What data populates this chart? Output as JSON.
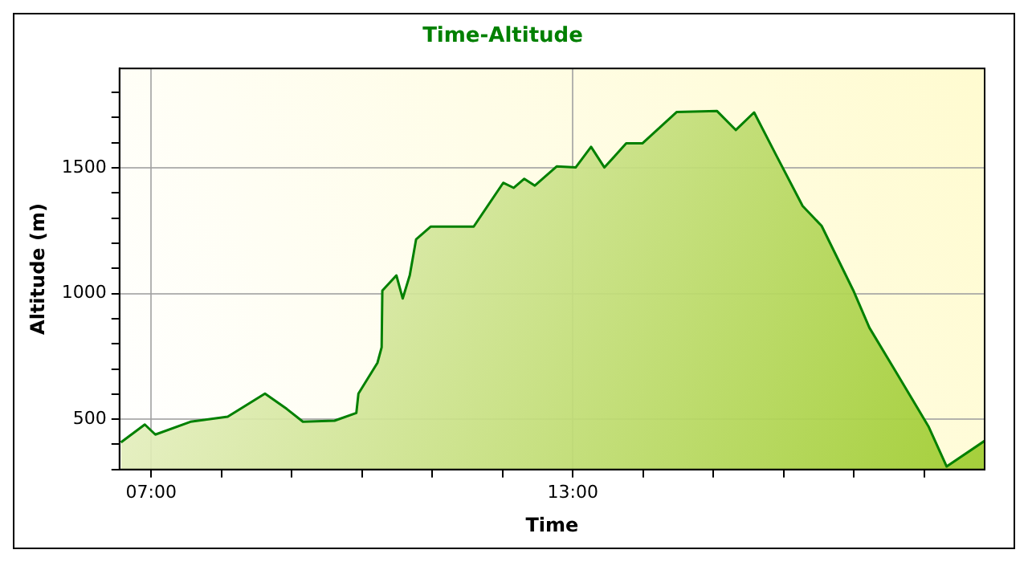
{
  "chart_data": {
    "type": "area",
    "title": "Time-Altitude",
    "xlabel": "Time",
    "ylabel": "Altitude (m)",
    "series": [
      {
        "color": "#008000",
        "x": [
          6.57,
          6.91,
          7.06,
          7.56,
          8.09,
          8.62,
          8.93,
          9.16,
          9.61,
          9.92,
          9.95,
          10.22,
          10.28,
          10.29,
          10.49,
          10.58,
          10.68,
          10.77,
          10.98,
          11.59,
          12.01,
          12.16,
          12.31,
          12.46,
          12.77,
          13.04,
          13.26,
          13.45,
          13.76,
          13.99,
          14.48,
          15.05,
          15.32,
          15.58,
          15.89,
          16.27,
          16.54,
          16.99,
          17.22,
          17.6,
          18.06,
          18.32,
          18.86
        ],
        "values": [
          408,
          479,
          439,
          490,
          510,
          602,
          541,
          490,
          494,
          525,
          602,
          724,
          786,
          1011,
          1072,
          980,
          1072,
          1215,
          1266,
          1266,
          1440,
          1420,
          1456,
          1429,
          1505,
          1501,
          1583,
          1501,
          1597,
          1597,
          1722,
          1726,
          1650,
          1720,
          1552,
          1348,
          1269,
          1013,
          864,
          687,
          472,
          312,
          414
        ]
      }
    ],
    "xlim": [
      6.55,
      18.86
    ],
    "xticks": [
      {
        "value": 7,
        "label": "07:00"
      },
      {
        "value": 8,
        "label": null
      },
      {
        "value": 9,
        "label": null
      },
      {
        "value": 10,
        "label": null
      },
      {
        "value": 11,
        "label": null
      },
      {
        "value": 12,
        "label": null
      },
      {
        "value": 13,
        "label": "13:00"
      },
      {
        "value": 14,
        "label": null
      },
      {
        "value": 15,
        "label": null
      },
      {
        "value": 16,
        "label": null
      },
      {
        "value": 17,
        "label": null
      },
      {
        "value": 18,
        "label": null
      }
    ],
    "ylim": [
      300,
      1895
    ],
    "yticks": [
      {
        "value": 300,
        "label": null
      },
      {
        "value": 400,
        "label": null
      },
      500,
      {
        "value": 600,
        "label": null
      },
      {
        "value": 700,
        "label": null
      },
      {
        "value": 800,
        "label": null
      },
      {
        "value": 900,
        "label": null
      },
      1000,
      {
        "value": 1100,
        "label": null
      },
      {
        "value": 1200,
        "label": null
      },
      {
        "value": 1300,
        "label": null
      },
      {
        "value": 1400,
        "label": null
      },
      1500,
      {
        "value": 1600,
        "label": null
      },
      {
        "value": 1700,
        "label": null
      },
      {
        "value": 1800,
        "label": null
      }
    ],
    "grid": true,
    "legend": false,
    "line_style": "solid",
    "marker": "none"
  }
}
